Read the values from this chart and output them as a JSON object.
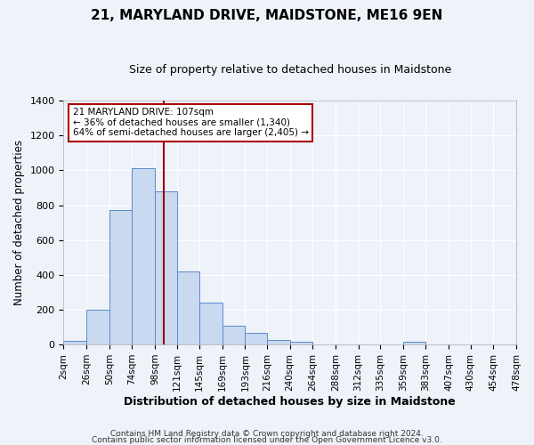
{
  "title": "21, MARYLAND DRIVE, MAIDSTONE, ME16 9EN",
  "subtitle": "Size of property relative to detached houses in Maidstone",
  "xlabel": "Distribution of detached houses by size in Maidstone",
  "ylabel": "Number of detached properties",
  "bar_color": "#c9d9ef",
  "bar_edge_color": "#5b8ac9",
  "background_color": "#eef2f9",
  "grid_color": "#ffffff",
  "bin_edges": [
    2,
    26,
    50,
    74,
    98,
    121,
    145,
    169,
    193,
    216,
    240,
    264,
    288,
    312,
    335,
    359,
    383,
    407,
    430,
    454,
    478
  ],
  "bin_labels": [
    "2sqm",
    "26sqm",
    "50sqm",
    "74sqm",
    "98sqm",
    "121sqm",
    "145sqm",
    "169sqm",
    "193sqm",
    "216sqm",
    "240sqm",
    "264sqm",
    "288sqm",
    "312sqm",
    "335sqm",
    "359sqm",
    "383sqm",
    "407sqm",
    "430sqm",
    "454sqm",
    "478sqm"
  ],
  "counts": [
    20,
    200,
    770,
    1010,
    880,
    420,
    240,
    110,
    68,
    25,
    18,
    0,
    0,
    0,
    0,
    15,
    0,
    0,
    0,
    0
  ],
  "ylim": [
    0,
    1400
  ],
  "yticks": [
    0,
    200,
    400,
    600,
    800,
    1000,
    1200,
    1400
  ],
  "vline_x": 107,
  "vline_color": "#990000",
  "annotation_title": "21 MARYLAND DRIVE: 107sqm",
  "annotation_line1": "← 36% of detached houses are smaller (1,340)",
  "annotation_line2": "64% of semi-detached houses are larger (2,405) →",
  "annotation_box_color": "#ffffff",
  "annotation_box_edge": "#aa0000",
  "footer_line1": "Contains HM Land Registry data © Crown copyright and database right 2024.",
  "footer_line2": "Contains public sector information licensed under the Open Government Licence v3.0."
}
